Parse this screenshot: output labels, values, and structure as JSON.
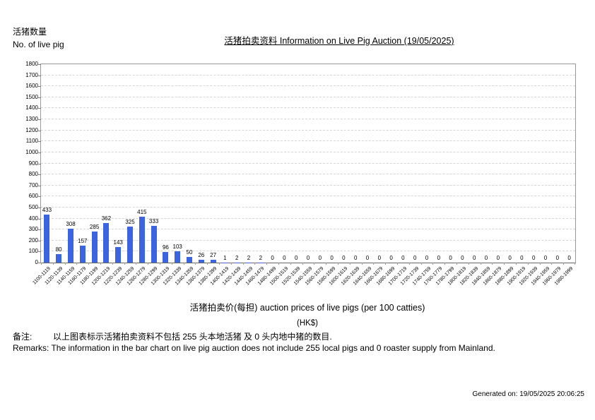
{
  "page": {
    "y_axis_title_zh": "活猪数量",
    "y_axis_title_en": "No. of live pig",
    "title": "活猪拍卖资料 Information on Live Pig Auction (19/05/2025)",
    "x_axis_label": "活猪拍卖价(每担) auction prices of live pigs (per 100 catties)",
    "x_axis_unit": "(HK$)",
    "remarks_zh_label": "备注:",
    "remarks_zh": "以上图表标示活猪拍卖资料不包括 255 头本地活猪 及 0 头内地中猪的数目.",
    "remarks_en": "Remarks: The information in the bar chart on live pig auction does not include 255 local pigs and 0 roaster supply from Mainland.",
    "generated_on": "Generated on: 19/05/2025 20:06:25"
  },
  "chart_data": {
    "type": "bar",
    "title": "活猪拍卖资料 Information on Live Pig Auction (19/05/2025)",
    "xlabel": "活猪拍卖价(每担) auction prices of live pigs (per 100 catties) (HK$)",
    "ylabel": "活猪数量 No. of live pig",
    "categories": [
      "1100-1119",
      "1120-1139",
      "1140-1159",
      "1160-1179",
      "1180-1199",
      "1200-1219",
      "1220-1239",
      "1240-1259",
      "1260-1279",
      "1280-1299",
      "1300-1319",
      "1320-1339",
      "1340-1359",
      "1360-1379",
      "1380-1399",
      "1400-1419",
      "1420-1439",
      "1440-1459",
      "1460-1479",
      "1480-1499",
      "1500-1519",
      "1520-1539",
      "1540-1559",
      "1560-1579",
      "1580-1599",
      "1600-1619",
      "1620-1639",
      "1640-1659",
      "1660-1679",
      "1680-1699",
      "1700-1719",
      "1720-1739",
      "1740-1759",
      "1760-1779",
      "1780-1799",
      "1800-1819",
      "1820-1839",
      "1840-1859",
      "1860-1879",
      "1880-1899",
      "1900-1919",
      "1920-1939",
      "1940-1959",
      "1960-1979",
      "1980-1999"
    ],
    "values": [
      433,
      80,
      308,
      157,
      285,
      362,
      143,
      325,
      415,
      333,
      96,
      103,
      50,
      26,
      27,
      1,
      2,
      2,
      2,
      0,
      0,
      0,
      0,
      0,
      0,
      0,
      0,
      0,
      0,
      0,
      0,
      0,
      0,
      0,
      0,
      0,
      0,
      0,
      0,
      0,
      0,
      0,
      0,
      0,
      0
    ],
    "ylim": [
      0,
      1800
    ],
    "ytick_step": 100,
    "grid": true,
    "data_labels": true,
    "legend": "none",
    "bar_color": "#3d64e0"
  }
}
